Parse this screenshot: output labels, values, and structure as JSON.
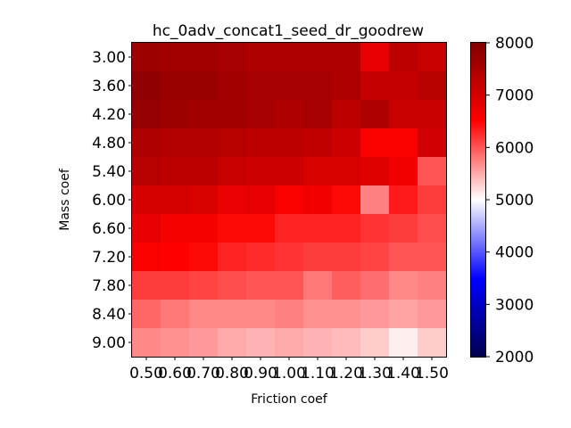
{
  "chart_data": {
    "type": "heatmap",
    "title": "hc_0adv_concat1_seed_dr_goodrew",
    "xlabel": "Friction coef",
    "ylabel": "Mass coef",
    "x_ticks": [
      "0.50",
      "0.60",
      "0.70",
      "0.80",
      "0.90",
      "1.00",
      "1.10",
      "1.20",
      "1.30",
      "1.40",
      "1.50"
    ],
    "y_ticks": [
      "3.00",
      "3.60",
      "4.20",
      "4.80",
      "5.40",
      "6.00",
      "6.60",
      "7.20",
      "7.80",
      "8.40",
      "9.00"
    ],
    "colormap": "seismic",
    "vmin": 2000,
    "vmax": 8000,
    "colorbar_ticks": [
      "2000",
      "3000",
      "4000",
      "5000",
      "6000",
      "7000",
      "8000"
    ],
    "values": [
      [
        7650,
        7600,
        7600,
        7550,
        7450,
        7450,
        7450,
        7450,
        6800,
        7300,
        7150
      ],
      [
        7800,
        7700,
        7700,
        7600,
        7550,
        7550,
        7550,
        7450,
        7200,
        7200,
        7350
      ],
      [
        7750,
        7650,
        7600,
        7600,
        7550,
        7450,
        7550,
        7300,
        7450,
        7150,
        7150
      ],
      [
        7450,
        7400,
        7400,
        7350,
        7300,
        7300,
        7250,
        7100,
        6550,
        6550,
        7050
      ],
      [
        7350,
        7300,
        7300,
        7150,
        7100,
        7100,
        6950,
        6950,
        6850,
        6650,
        6000
      ],
      [
        7000,
        7000,
        6950,
        6750,
        6800,
        6550,
        6650,
        6450,
        5750,
        6350,
        6150
      ],
      [
        6800,
        6600,
        6600,
        6450,
        6450,
        6300,
        6300,
        6300,
        6200,
        6150,
        6050
      ],
      [
        6550,
        6500,
        6450,
        6300,
        6250,
        6200,
        6150,
        6150,
        6100,
        6000,
        6000
      ],
      [
        6150,
        6150,
        6100,
        6050,
        6000,
        6000,
        5800,
        5950,
        5850,
        5700,
        5750
      ],
      [
        5900,
        5800,
        5700,
        5700,
        5700,
        5750,
        5650,
        5650,
        5600,
        5550,
        5600
      ],
      [
        5700,
        5650,
        5600,
        5500,
        5450,
        5500,
        5450,
        5400,
        5300,
        5100,
        5300
      ]
    ]
  }
}
